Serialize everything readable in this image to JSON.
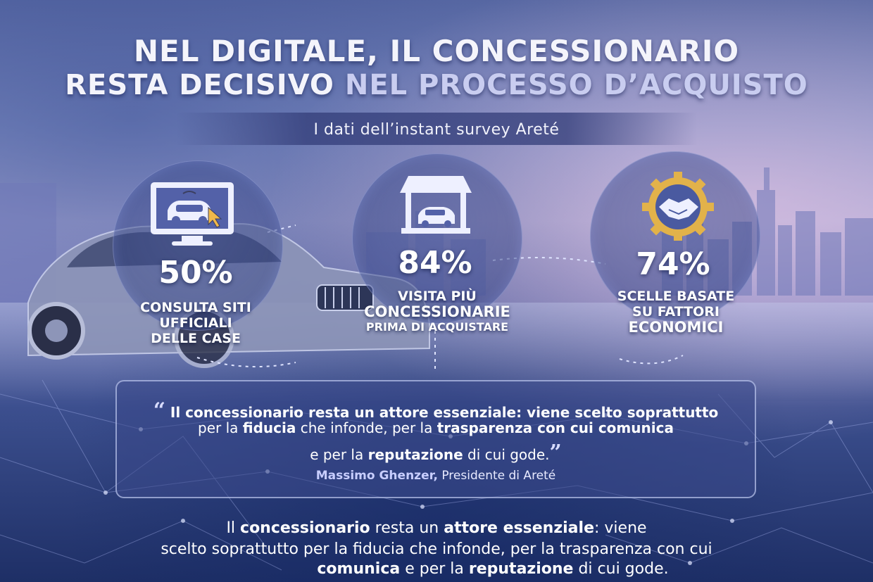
{
  "title": {
    "line1": "NEL DIGITALE, IL CONCESSIONARIO",
    "line2_a": "RESTA DECISIVO ",
    "line2_b": "NEL PROCESSO D’ACQUISTO"
  },
  "subtitle": "I dati dell’instant survey Areté",
  "stats": [
    {
      "percent": "50%",
      "caption_lines": [
        "CONSULTA SITI",
        "UFFICIALI",
        "DELLE CASE"
      ],
      "icon": "monitor-car-icon"
    },
    {
      "percent": "84%",
      "caption_lines": [
        "VISITA PIÙ",
        "CONCESSIONARIE",
        "PRIMA DI ACQUISTARE"
      ],
      "icon": "dealership-icon"
    },
    {
      "percent": "74%",
      "caption_lines": [
        "SCELLE BASATE",
        "SU FATTORI",
        "ECONOMICI"
      ],
      "icon": "handshake-gear-icon"
    }
  ],
  "quote": {
    "line1": "Il concessionario resta un attore essenziale: viene scelto soprattutto",
    "line2_a": "per la ",
    "line2_b": "fiducia",
    "line2_c": " che infonde, per la ",
    "line2_d": "trasparenza con cui comunica",
    "line3_a": "e per la ",
    "line3_b": "reputazione",
    "line3_c": " di cui gode.",
    "author_name": "Massimo Ghenzer,",
    "author_role": " Presidente di Areté",
    "open_mark": "“",
    "close_mark": "”"
  },
  "footer": {
    "l1_a": "Il ",
    "l1_b": "concessionario",
    "l1_c": " resta un ",
    "l1_d": "attore essenziale",
    "l1_e": ": viene",
    "l2": "scelto soprattutto per la fiducia che infonde, per la trasparenza con cui",
    "l3_a": "comunica",
    "l3_b": " e per la ",
    "l3_c": "reputazione",
    "l3_d": " di cui gode."
  },
  "colors": {
    "accent_gold": "#e2b24a",
    "panel": "#3c4b8c"
  }
}
